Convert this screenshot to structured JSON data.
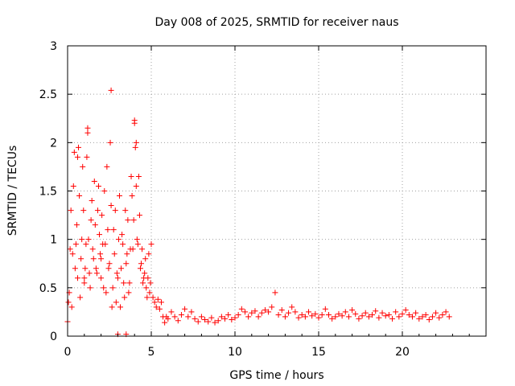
{
  "chart_data": {
    "type": "scatter",
    "title": "Day 008 of 2025, SRMTID for receiver naus",
    "xlabel": "GPS time / hours",
    "ylabel": "SRMTID / TECUs",
    "xlim": [
      0,
      25
    ],
    "ylim": [
      0,
      3
    ],
    "xticks": [
      0,
      5,
      10,
      15,
      20
    ],
    "xtick_labels": [
      "0",
      "5",
      "10",
      "15",
      "20"
    ],
    "yticks": [
      0,
      0.5,
      1,
      1.5,
      2,
      2.5,
      3
    ],
    "ytick_labels": [
      "0",
      "0.5",
      "1",
      "1.5",
      "2",
      "2.5",
      "3"
    ],
    "grid": true,
    "marker": "+",
    "series": [
      {
        "name": "SRMTID",
        "color": "#ff0000",
        "x": [
          0.0,
          0.1,
          0.2,
          0.3,
          0.4,
          0.5,
          0.6,
          0.7,
          0.8,
          0.9,
          1.0,
          1.1,
          1.2,
          1.3,
          1.4,
          1.5,
          1.6,
          1.7,
          1.8,
          1.9,
          2.0,
          2.1,
          2.2,
          2.3,
          2.4,
          2.5,
          2.6,
          2.7,
          2.8,
          2.9,
          3.0,
          3.1,
          3.2,
          3.3,
          3.4,
          3.5,
          3.6,
          3.7,
          3.8,
          3.9,
          4.0,
          4.1,
          4.2,
          4.3,
          4.4,
          4.5,
          4.6,
          4.7,
          4.8,
          4.9,
          5.0,
          5.1,
          5.2,
          5.3,
          5.4,
          5.5,
          5.6,
          5.7,
          5.8,
          5.9,
          6.0,
          6.2,
          6.4,
          6.6,
          6.8,
          7.0,
          7.2,
          7.4,
          7.6,
          7.8,
          8.0,
          8.2,
          8.4,
          8.6,
          8.8,
          9.0,
          9.2,
          9.4,
          9.6,
          9.8,
          10.0,
          10.2,
          10.4,
          10.6,
          10.8,
          11.0,
          11.2,
          11.4,
          11.6,
          11.8,
          12.0,
          12.2,
          12.4,
          12.6,
          12.8,
          13.0,
          13.2,
          13.4,
          13.6,
          13.8,
          14.0,
          14.2,
          14.4,
          14.6,
          14.8,
          15.0,
          15.2,
          15.4,
          15.6,
          15.8,
          16.0,
          16.2,
          16.4,
          16.6,
          16.8,
          17.0,
          17.2,
          17.4,
          17.6,
          17.8,
          18.0,
          18.2,
          18.4,
          18.6,
          18.8,
          19.0,
          19.2,
          19.4,
          19.6,
          19.8,
          20.0,
          20.2,
          20.4,
          20.6,
          20.8,
          21.0,
          21.2,
          21.4,
          21.6,
          21.8,
          22.0,
          22.2,
          22.4,
          22.6,
          22.8,
          0.05,
          0.15,
          0.25,
          0.35,
          0.45,
          0.55,
          0.65,
          0.75,
          0.85,
          0.95,
          1.05,
          1.15,
          1.25,
          1.35,
          1.45,
          1.55,
          1.65,
          1.75,
          1.85,
          1.95,
          2.05,
          2.15,
          2.25,
          2.35,
          2.45,
          2.55,
          2.65,
          2.75,
          2.85,
          2.95,
          3.05,
          3.15,
          3.25,
          3.35,
          3.45,
          3.55,
          3.65,
          3.75,
          3.85,
          3.95,
          4.05,
          4.15,
          4.25,
          4.35,
          4.45,
          4.55,
          4.65,
          4.75,
          4.85,
          4.95,
          0.6,
          1.2,
          2.6,
          4.0,
          4.1,
          3.0,
          3.5,
          2.0,
          1.0
        ],
        "y": [
          0.15,
          0.45,
          1.3,
          0.85,
          1.9,
          0.95,
          0.6,
          1.45,
          0.8,
          1.75,
          0.55,
          0.95,
          2.1,
          0.65,
          1.2,
          0.9,
          1.6,
          0.7,
          1.3,
          1.05,
          0.6,
          0.95,
          1.5,
          0.45,
          1.1,
          0.75,
          1.35,
          0.5,
          0.85,
          0.35,
          0.6,
          1.45,
          0.7,
          0.95,
          0.4,
          0.75,
          1.2,
          0.55,
          1.65,
          0.9,
          2.2,
          1.55,
          0.95,
          1.25,
          0.75,
          0.55,
          0.65,
          0.5,
          0.6,
          0.45,
          0.95,
          0.4,
          0.35,
          0.3,
          0.38,
          0.28,
          0.35,
          0.2,
          0.14,
          0.2,
          0.18,
          0.25,
          0.2,
          0.16,
          0.22,
          0.28,
          0.2,
          0.25,
          0.18,
          0.15,
          0.2,
          0.17,
          0.15,
          0.19,
          0.14,
          0.16,
          0.2,
          0.18,
          0.22,
          0.17,
          0.19,
          0.22,
          0.28,
          0.25,
          0.2,
          0.24,
          0.26,
          0.2,
          0.24,
          0.27,
          0.25,
          0.3,
          0.45,
          0.22,
          0.27,
          0.2,
          0.24,
          0.3,
          0.25,
          0.19,
          0.22,
          0.2,
          0.25,
          0.21,
          0.23,
          0.19,
          0.22,
          0.28,
          0.22,
          0.18,
          0.2,
          0.23,
          0.21,
          0.25,
          0.2,
          0.27,
          0.23,
          0.18,
          0.21,
          0.24,
          0.2,
          0.22,
          0.26,
          0.19,
          0.24,
          0.21,
          0.22,
          0.18,
          0.25,
          0.2,
          0.23,
          0.27,
          0.22,
          0.2,
          0.24,
          0.18,
          0.2,
          0.22,
          0.17,
          0.2,
          0.24,
          0.19,
          0.22,
          0.25,
          0.2,
          0.35,
          0.9,
          0.3,
          1.55,
          0.7,
          1.15,
          1.95,
          0.4,
          1.0,
          1.3,
          0.7,
          1.85,
          1.0,
          0.5,
          1.4,
          0.8,
          1.15,
          0.65,
          1.55,
          0.85,
          1.25,
          0.5,
          0.95,
          1.75,
          0.7,
          2.0,
          0.3,
          1.1,
          1.3,
          0.65,
          1.0,
          0.3,
          1.05,
          0.55,
          1.3,
          0.85,
          0.45,
          0.9,
          1.45,
          1.2,
          1.95,
          1.0,
          1.65,
          0.7,
          0.9,
          0.6,
          0.8,
          0.4,
          0.85,
          0.55,
          1.85,
          2.15,
          2.54,
          2.23,
          2.0,
          0.02,
          0.02,
          0.8,
          0.6
        ]
      }
    ]
  }
}
